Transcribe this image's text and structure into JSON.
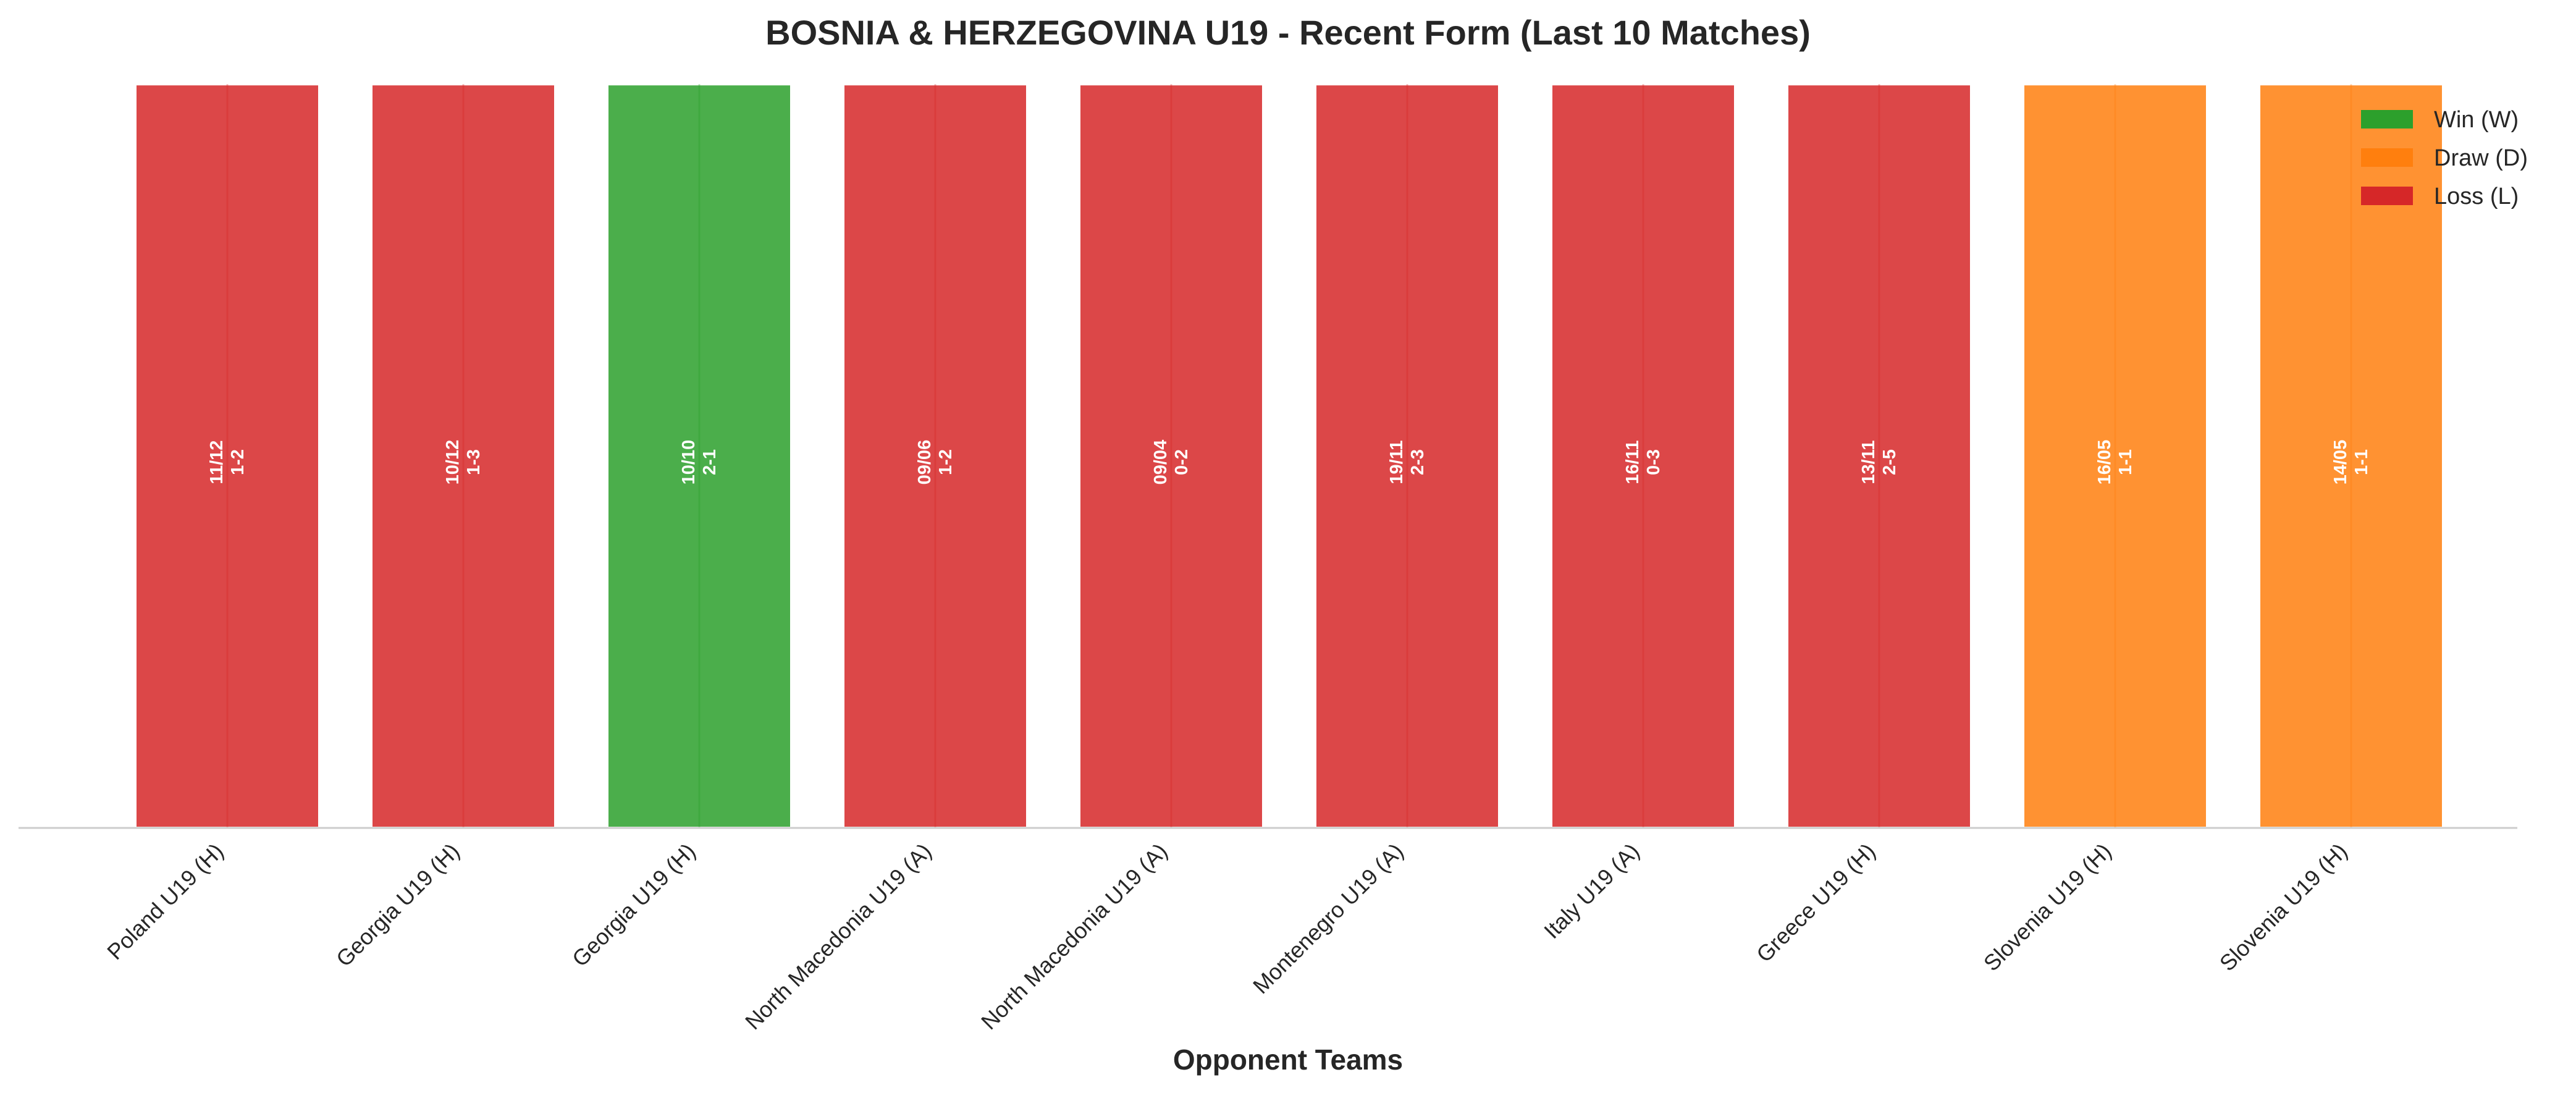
{
  "chart_data": {
    "type": "bar",
    "title": "BOSNIA & HERZEGOVINA U19 - Recent Form (Last 10 Matches)",
    "xlabel": "Opponent Teams",
    "ylabel": "",
    "categories": [
      "Poland U19 (H)",
      "Georgia U19 (H)",
      "Georgia U19 (H)",
      "North Macedonia U19 (A)",
      "North Macedonia U19 (A)",
      "Montenegro U19 (A)",
      "Italy U19 (A)",
      "Greece U19 (H)",
      "Slovenia U19 (H)",
      "Slovenia U19 (H)"
    ],
    "values": [
      1,
      1,
      1,
      1,
      1,
      1,
      1,
      1,
      1,
      1
    ],
    "results": [
      "L",
      "L",
      "W",
      "L",
      "L",
      "L",
      "L",
      "L",
      "D",
      "D"
    ],
    "dates": [
      "11/12",
      "10/12",
      "10/10",
      "09/06",
      "09/04",
      "19/11",
      "16/11",
      "13/11",
      "16/05",
      "14/05"
    ],
    "scores": [
      "1-2",
      "1-3",
      "2-1",
      "1-2",
      "0-2",
      "2-3",
      "0-3",
      "2-5",
      "1-1",
      "1-1"
    ],
    "ylim": [
      0,
      1.05
    ],
    "grid": false,
    "legend": {
      "placement": "top-right",
      "entries": [
        {
          "key": "W",
          "label": "Win (W)"
        },
        {
          "key": "D",
          "label": "Draw (D)"
        },
        {
          "key": "L",
          "label": "Loss (L)"
        }
      ]
    },
    "colors": {
      "W": "#2ca02c",
      "D": "#ff7f0e",
      "L": "#d62728",
      "axis": "#cccccc",
      "text": "#262626"
    }
  }
}
